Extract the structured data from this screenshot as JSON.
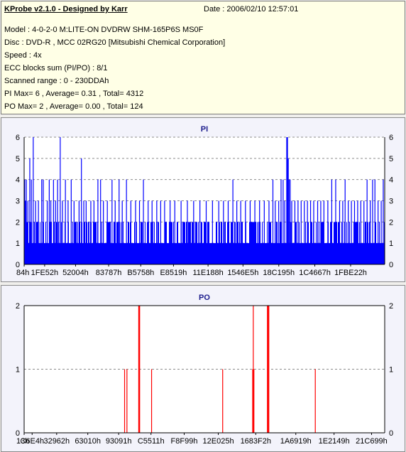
{
  "info": {
    "title": "KProbe v2.1.0 - Designed by Karr",
    "date": "Date : 2006/02/10 12:57:01",
    "model": "Model : 4-0-2-0 M:LITE-ON DVDRW SHM-165P6S MS0F",
    "disc": "Disc : DVD-R , MCC 02RG20   [Mitsubishi Chemical Corporation]",
    "speed": "Speed : 4x",
    "ecc": "ECC blocks sum (PI/PO) : 8/1",
    "range": "Scanned range : 0 - 230DDAh",
    "pi_stats": "PI Max= 6 , Average= 0.31 , Total= 4312",
    "po_stats": "PO Max= 2 , Average= 0.00 , Total= 124"
  },
  "chart_data": [
    {
      "type": "bar",
      "title": "PI",
      "ylim": [
        0,
        6
      ],
      "yticks": [
        0,
        1,
        2,
        3,
        4,
        5,
        6
      ],
      "grid": true,
      "color": "#0000ff",
      "xlim": [
        0,
        2297306
      ],
      "xticks": [
        {
          "label": "84h",
          "value": 132
        },
        {
          "label": "1FE52h",
          "value": 130642
        },
        {
          "label": "52004h",
          "value": 327684
        },
        {
          "label": "83787h",
          "value": 538503
        },
        {
          "label": "B5758h",
          "value": 743256
        },
        {
          "label": "E8519h",
          "value": 951577
        },
        {
          "label": "11E188h",
          "value": 1171848
        },
        {
          "label": "1546E5h",
          "value": 1394405
        },
        {
          "label": "18C195h",
          "value": 1622421
        },
        {
          "label": "1C4667h",
          "value": 1852007
        },
        {
          "label": "1FBE22h",
          "value": 2080290
        }
      ],
      "peaks": [
        {
          "x": 4000,
          "y": 4
        },
        {
          "x": 9000,
          "y": 3
        },
        {
          "x": 14000,
          "y": 4
        },
        {
          "x": 24000,
          "y": 3
        },
        {
          "x": 36000,
          "y": 5
        },
        {
          "x": 46000,
          "y": 4
        },
        {
          "x": 58000,
          "y": 6
        },
        {
          "x": 73000,
          "y": 3
        },
        {
          "x": 91000,
          "y": 3
        },
        {
          "x": 112000,
          "y": 4
        },
        {
          "x": 122000,
          "y": 4
        },
        {
          "x": 147000,
          "y": 3
        },
        {
          "x": 160000,
          "y": 4
        },
        {
          "x": 170000,
          "y": 3
        },
        {
          "x": 187000,
          "y": 4
        },
        {
          "x": 200000,
          "y": 3
        },
        {
          "x": 213000,
          "y": 4
        },
        {
          "x": 230000,
          "y": 6
        },
        {
          "x": 244000,
          "y": 3
        },
        {
          "x": 263000,
          "y": 4
        },
        {
          "x": 280000,
          "y": 3
        },
        {
          "x": 300000,
          "y": 4
        },
        {
          "x": 318000,
          "y": 3
        },
        {
          "x": 350000,
          "y": 3
        },
        {
          "x": 365000,
          "y": 5
        },
        {
          "x": 380000,
          "y": 3
        },
        {
          "x": 395000,
          "y": 3
        },
        {
          "x": 425000,
          "y": 3
        },
        {
          "x": 445000,
          "y": 3
        },
        {
          "x": 470000,
          "y": 4
        },
        {
          "x": 487000,
          "y": 4
        },
        {
          "x": 505000,
          "y": 3
        },
        {
          "x": 530000,
          "y": 3
        },
        {
          "x": 560000,
          "y": 4
        },
        {
          "x": 580000,
          "y": 3
        },
        {
          "x": 605000,
          "y": 4
        },
        {
          "x": 625000,
          "y": 3
        },
        {
          "x": 652000,
          "y": 4
        },
        {
          "x": 680000,
          "y": 3
        },
        {
          "x": 710000,
          "y": 3
        },
        {
          "x": 735000,
          "y": 3
        },
        {
          "x": 760000,
          "y": 4
        },
        {
          "x": 790000,
          "y": 3
        },
        {
          "x": 815000,
          "y": 3
        },
        {
          "x": 845000,
          "y": 3
        },
        {
          "x": 870000,
          "y": 3
        },
        {
          "x": 895000,
          "y": 3
        },
        {
          "x": 930000,
          "y": 3
        },
        {
          "x": 960000,
          "y": 3
        },
        {
          "x": 1000000,
          "y": 3
        },
        {
          "x": 1040000,
          "y": 3
        },
        {
          "x": 1080000,
          "y": 3
        },
        {
          "x": 1120000,
          "y": 3
        },
        {
          "x": 1160000,
          "y": 3
        },
        {
          "x": 1200000,
          "y": 3
        },
        {
          "x": 1240000,
          "y": 3
        },
        {
          "x": 1270000,
          "y": 3
        },
        {
          "x": 1300000,
          "y": 3
        },
        {
          "x": 1330000,
          "y": 4
        },
        {
          "x": 1355000,
          "y": 3
        },
        {
          "x": 1380000,
          "y": 3
        },
        {
          "x": 1410000,
          "y": 3
        },
        {
          "x": 1440000,
          "y": 3
        },
        {
          "x": 1470000,
          "y": 3
        },
        {
          "x": 1500000,
          "y": 3
        },
        {
          "x": 1530000,
          "y": 3
        },
        {
          "x": 1560000,
          "y": 3
        },
        {
          "x": 1585000,
          "y": 4
        },
        {
          "x": 1600000,
          "y": 3
        },
        {
          "x": 1622000,
          "y": 3
        },
        {
          "x": 1637000,
          "y": 4
        },
        {
          "x": 1650000,
          "y": 4
        },
        {
          "x": 1660000,
          "y": 3
        },
        {
          "x": 1673000,
          "y": 6
        },
        {
          "x": 1678000,
          "y": 6
        },
        {
          "x": 1683000,
          "y": 5
        },
        {
          "x": 1688000,
          "y": 4
        },
        {
          "x": 1695000,
          "y": 4
        },
        {
          "x": 1705000,
          "y": 3
        },
        {
          "x": 1725000,
          "y": 3
        },
        {
          "x": 1745000,
          "y": 3
        },
        {
          "x": 1765000,
          "y": 3
        },
        {
          "x": 1785000,
          "y": 3
        },
        {
          "x": 1805000,
          "y": 3
        },
        {
          "x": 1825000,
          "y": 3
        },
        {
          "x": 1845000,
          "y": 3
        },
        {
          "x": 1870000,
          "y": 3
        },
        {
          "x": 1890000,
          "y": 3
        },
        {
          "x": 1910000,
          "y": 3
        },
        {
          "x": 1935000,
          "y": 3
        },
        {
          "x": 1960000,
          "y": 4
        },
        {
          "x": 1985000,
          "y": 4
        },
        {
          "x": 2010000,
          "y": 3
        },
        {
          "x": 2030000,
          "y": 3
        },
        {
          "x": 2045000,
          "y": 4
        },
        {
          "x": 2065000,
          "y": 3
        },
        {
          "x": 2085000,
          "y": 3
        },
        {
          "x": 2105000,
          "y": 3
        },
        {
          "x": 2125000,
          "y": 3
        },
        {
          "x": 2145000,
          "y": 3
        },
        {
          "x": 2165000,
          "y": 3
        },
        {
          "x": 2185000,
          "y": 4
        },
        {
          "x": 2205000,
          "y": 3
        },
        {
          "x": 2220000,
          "y": 4
        },
        {
          "x": 2235000,
          "y": 4
        },
        {
          "x": 2255000,
          "y": 3
        },
        {
          "x": 2275000,
          "y": 3
        },
        {
          "x": 2288000,
          "y": 4
        }
      ]
    },
    {
      "type": "bar",
      "title": "PO",
      "ylim": [
        0,
        2
      ],
      "yticks": [
        0,
        1,
        2
      ],
      "grid": true,
      "color": "#ff0000",
      "xlim": [
        0,
        2297306
      ],
      "xticks": [
        {
          "label": "13h",
          "value": 19
        },
        {
          "label": "C6E4h",
          "value": 50916
        },
        {
          "label": "32962h",
          "value": 207202
        },
        {
          "label": "63010h",
          "value": 405520
        },
        {
          "label": "93091h",
          "value": 602257
        },
        {
          "label": "C5511h",
          "value": 808209
        },
        {
          "label": "F8F99h",
          "value": 1019801
        },
        {
          "label": "12E025h",
          "value": 1237029
        },
        {
          "label": "1683F2h",
          "value": 1475570
        },
        {
          "label": "1A6919h",
          "value": 1730841
        },
        {
          "label": "1E2149h",
          "value": 1974601
        },
        {
          "label": "21C699h",
          "value": 2213529
        }
      ],
      "bars": [
        {
          "x": 640000,
          "y": 1
        },
        {
          "x": 655000,
          "y": 1
        },
        {
          "x": 730000,
          "y": 2
        },
        {
          "x": 733000,
          "y": 2
        },
        {
          "x": 736000,
          "y": 2
        },
        {
          "x": 812000,
          "y": 1
        },
        {
          "x": 1265000,
          "y": 1
        },
        {
          "x": 1456000,
          "y": 1
        },
        {
          "x": 1460000,
          "y": 2
        },
        {
          "x": 1464000,
          "y": 1
        },
        {
          "x": 1550000,
          "y": 2
        },
        {
          "x": 1553000,
          "y": 2
        },
        {
          "x": 1556000,
          "y": 2
        },
        {
          "x": 1559000,
          "y": 2
        },
        {
          "x": 1855000,
          "y": 1
        }
      ]
    }
  ]
}
